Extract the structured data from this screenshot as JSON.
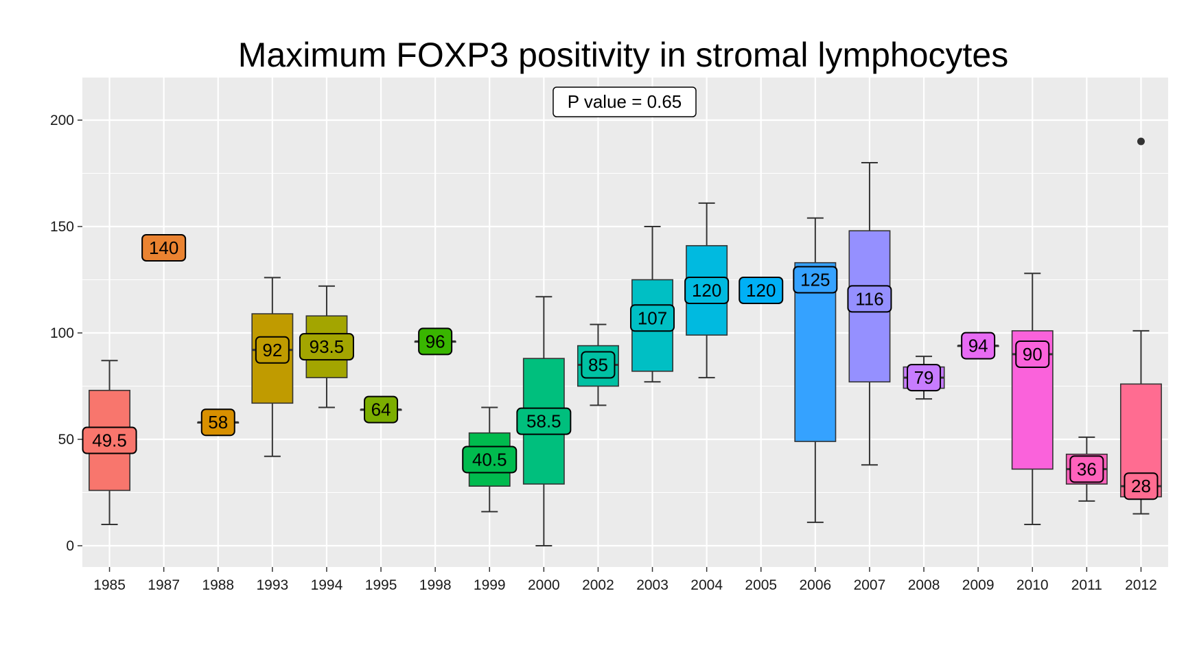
{
  "chart_data": {
    "type": "box",
    "title": "Maximum FOXP3 positivity in stromal lymphocytes",
    "xlabel": "",
    "ylabel": "",
    "ylim": [
      -10,
      220
    ],
    "y_ticks": [
      0,
      50,
      100,
      150,
      200
    ],
    "grid": true,
    "legend": "none",
    "annotation": "P value = 0.65",
    "categories": [
      "1985",
      "1987",
      "1988",
      "1993",
      "1994",
      "1995",
      "1998",
      "1999",
      "2000",
      "2002",
      "2003",
      "2004",
      "2005",
      "2006",
      "2007",
      "2008",
      "2009",
      "2010",
      "2011",
      "2012"
    ],
    "series": [
      {
        "x": "1985",
        "min": 10,
        "q1": 26,
        "median": 49.5,
        "q3": 73,
        "max": 87,
        "label": "49.5",
        "color": "#F8766D"
      },
      {
        "x": "1987",
        "min": 140,
        "q1": 140,
        "median": 140,
        "q3": 140,
        "max": 140,
        "label": "140",
        "color": "#EA8331"
      },
      {
        "x": "1988",
        "min": 58,
        "q1": 58,
        "median": 58,
        "q3": 58,
        "max": 58,
        "label": "58",
        "color": "#D89000"
      },
      {
        "x": "1993",
        "min": 42,
        "q1": 67,
        "median": 92,
        "q3": 109,
        "max": 126,
        "label": "92",
        "color": "#C09B00"
      },
      {
        "x": "1994",
        "min": 65,
        "q1": 79,
        "median": 93.5,
        "q3": 108,
        "max": 122,
        "label": "93.5",
        "color": "#A3A500"
      },
      {
        "x": "1995",
        "min": 64,
        "q1": 64,
        "median": 64,
        "q3": 64,
        "max": 64,
        "label": "64",
        "color": "#7CAE00"
      },
      {
        "x": "1998",
        "min": 96,
        "q1": 96,
        "median": 96,
        "q3": 96,
        "max": 96,
        "label": "96",
        "color": "#39B600"
      },
      {
        "x": "1999",
        "min": 16,
        "q1": 28,
        "median": 40.5,
        "q3": 53,
        "max": 65,
        "label": "40.5",
        "color": "#00BB4E"
      },
      {
        "x": "2000",
        "min": 0,
        "q1": 29,
        "median": 58.5,
        "q3": 88,
        "max": 117,
        "label": "58.5",
        "color": "#00BF7D"
      },
      {
        "x": "2002",
        "min": 66,
        "q1": 75,
        "median": 85,
        "q3": 94,
        "max": 104,
        "label": "85",
        "color": "#00C1A3"
      },
      {
        "x": "2003",
        "min": 77,
        "q1": 82,
        "median": 107,
        "q3": 125,
        "max": 150,
        "label": "107",
        "color": "#00BFC4"
      },
      {
        "x": "2004",
        "min": 79,
        "q1": 99,
        "median": 120,
        "q3": 141,
        "max": 161,
        "label": "120",
        "color": "#00BAE0"
      },
      {
        "x": "2005",
        "min": 120,
        "q1": 120,
        "median": 120,
        "q3": 120,
        "max": 120,
        "label": "120",
        "color": "#00B0F6"
      },
      {
        "x": "2006",
        "min": 11,
        "q1": 49,
        "median": 125,
        "q3": 133,
        "max": 154,
        "label": "125",
        "color": "#35A2FF"
      },
      {
        "x": "2007",
        "min": 38,
        "q1": 77,
        "median": 116,
        "q3": 148,
        "max": 180,
        "label": "116",
        "color": "#9590FF"
      },
      {
        "x": "2008",
        "min": 69,
        "q1": 74,
        "median": 79,
        "q3": 84,
        "max": 89,
        "label": "79",
        "color": "#C77CFF"
      },
      {
        "x": "2009",
        "min": 94,
        "q1": 94,
        "median": 94,
        "q3": 94,
        "max": 94,
        "label": "94",
        "color": "#E76BF3"
      },
      {
        "x": "2010",
        "min": 10,
        "q1": 36,
        "median": 90,
        "q3": 101,
        "max": 128,
        "label": "90",
        "color": "#FA62DB"
      },
      {
        "x": "2011",
        "min": 21,
        "q1": 29,
        "median": 36,
        "q3": 43,
        "max": 51,
        "label": "36",
        "color": "#FF62BC"
      },
      {
        "x": "2012",
        "min": 15,
        "q1": 23,
        "median": 28,
        "q3": 76,
        "max": 101,
        "label": "28",
        "color": "#FF6C91",
        "outliers": [
          190
        ]
      }
    ]
  },
  "colors": {
    "panel_background": "#EBEBEB",
    "grid_line": "#FFFFFF",
    "outline": "#333333"
  }
}
